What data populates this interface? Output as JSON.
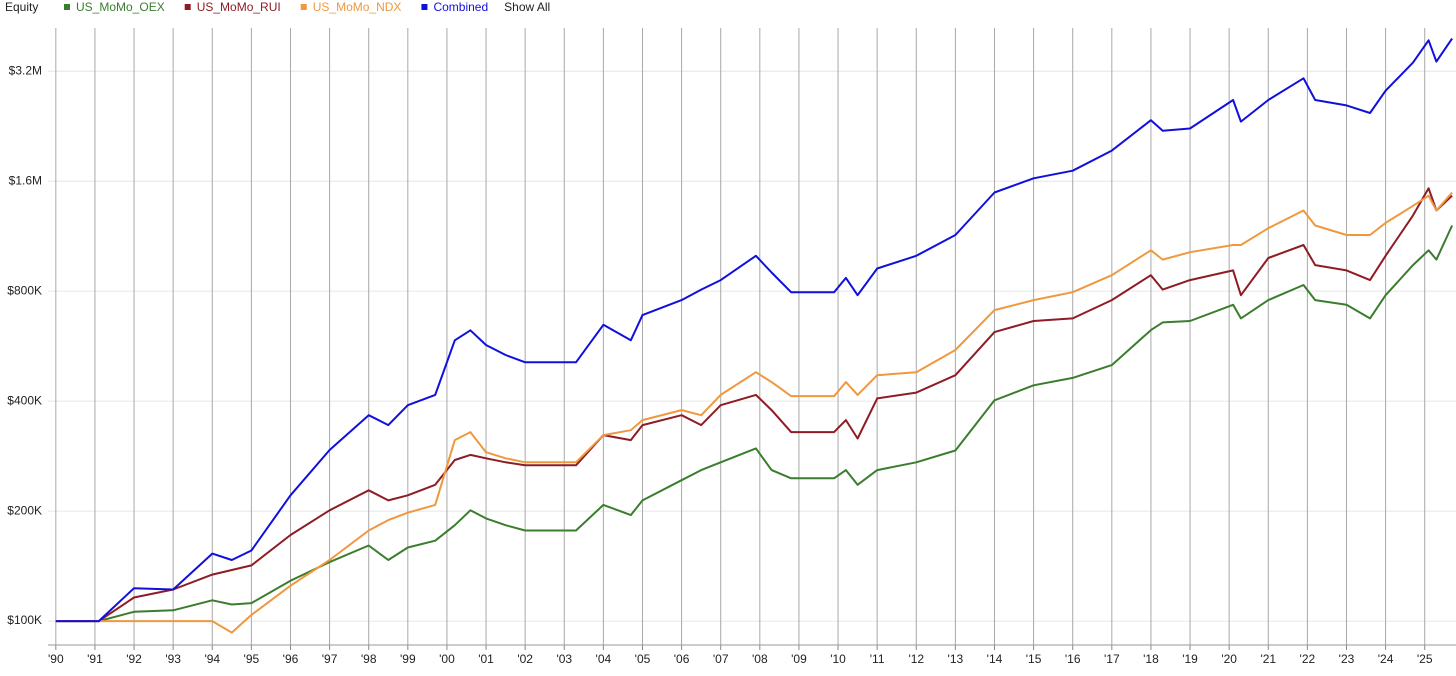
{
  "chart_data": {
    "type": "line",
    "title": "Equity",
    "show_all_label": "Show All",
    "log_scale_y": true,
    "grid": true,
    "legend": "top-left",
    "x": [
      1990,
      1991.1,
      1992,
      1993,
      1994,
      1994.5,
      1995,
      1996,
      1997,
      1998,
      1998.5,
      1999,
      1999.7,
      2000.2,
      2000.6,
      2001,
      2001.5,
      2002,
      2003.3,
      2004,
      2004.7,
      2005,
      2006,
      2006.5,
      2007,
      2007.9,
      2008.3,
      2008.8,
      2009.9,
      2010.2,
      2010.5,
      2011,
      2012,
      2013,
      2014,
      2015,
      2016,
      2017,
      2018,
      2018.3,
      2019,
      2020.1,
      2020.3,
      2021,
      2021.9,
      2022.2,
      2023,
      2023.6,
      2024,
      2024.7,
      2025.1,
      2025.3,
      2025.7
    ],
    "series": [
      {
        "name": "US_MoMo_OEX",
        "color": "#3b7d2e",
        "values": [
          100000,
          100000,
          106000,
          107000,
          114000,
          111000,
          112000,
          129000,
          145000,
          161000,
          147000,
          159000,
          166000,
          183000,
          201000,
          191000,
          183000,
          177000,
          177000,
          208000,
          195000,
          214000,
          243000,
          259000,
          272000,
          297000,
          259000,
          246000,
          246000,
          259000,
          236000,
          259000,
          272000,
          293000,
          402000,
          442000,
          463000,
          502000,
          626000,
          657000,
          663000,
          734000,
          674000,
          756000,
          832000,
          756000,
          734000,
          674000,
          780000,
          943000,
          1035000,
          976000,
          1210000
        ]
      },
      {
        "name": "US_MoMo_RUI",
        "color": "#8e1c24",
        "values": [
          100000,
          100000,
          116000,
          122000,
          134000,
          138000,
          142000,
          172000,
          201000,
          228000,
          214000,
          221000,
          236000,
          276000,
          285000,
          279000,
          272000,
          267000,
          267000,
          323000,
          313000,
          344000,
          366000,
          344000,
          390000,
          416000,
          378000,
          329000,
          329000,
          355000,
          316000,
          407000,
          422000,
          471000,
          618000,
          663000,
          674000,
          756000,
          885000,
          808000,
          858000,
          912000,
          780000,
          986000,
          1070000,
          943000,
          912000,
          858000,
          1000000,
          1290000,
          1530000,
          1330000,
          1460000
        ]
      },
      {
        "name": "US_MoMo_NDX",
        "color": "#f0983e",
        "values": [
          100000,
          100000,
          100000,
          100000,
          100000,
          93000,
          104000,
          125000,
          147000,
          177000,
          189000,
          198000,
          208000,
          313000,
          329000,
          290000,
          279000,
          272000,
          272000,
          323000,
          333000,
          355000,
          378000,
          366000,
          416000,
          480000,
          451000,
          413000,
          413000,
          451000,
          416000,
          471000,
          480000,
          552000,
          710000,
          756000,
          795000,
          885000,
          1035000,
          976000,
          1023000,
          1070000,
          1070000,
          1190000,
          1330000,
          1210000,
          1140000,
          1140000,
          1230000,
          1370000,
          1460000,
          1330000,
          1490000
        ]
      },
      {
        "name": "Combined",
        "color": "#1010dd",
        "values": [
          100000,
          100000,
          123000,
          122000,
          153000,
          147000,
          156000,
          221000,
          294000,
          366000,
          344000,
          390000,
          416000,
          587000,
          625000,
          570000,
          535000,
          511000,
          511000,
          647000,
          587000,
          688000,
          756000,
          808000,
          858000,
          1000000,
          900000,
          795000,
          795000,
          870000,
          780000,
          923000,
          1000000,
          1140000,
          1490000,
          1630000,
          1710000,
          1940000,
          2350000,
          2200000,
          2230000,
          2670000,
          2330000,
          2670000,
          3060000,
          2670000,
          2580000,
          2460000,
          2830000,
          3380000,
          3890000,
          3400000,
          3930000
        ]
      }
    ],
    "xlim": [
      1989.8,
      2025.8
    ],
    "xticks": [
      {
        "value": 1990,
        "label": "'90"
      },
      {
        "value": 1991,
        "label": "'91"
      },
      {
        "value": 1992,
        "label": "'92"
      },
      {
        "value": 1993,
        "label": "'93"
      },
      {
        "value": 1994,
        "label": "'94"
      },
      {
        "value": 1995,
        "label": "'95"
      },
      {
        "value": 1996,
        "label": "'96"
      },
      {
        "value": 1997,
        "label": "'97"
      },
      {
        "value": 1998,
        "label": "'98"
      },
      {
        "value": 1999,
        "label": "'99"
      },
      {
        "value": 2000,
        "label": "'00"
      },
      {
        "value": 2001,
        "label": "'01"
      },
      {
        "value": 2002,
        "label": "'02"
      },
      {
        "value": 2003,
        "label": "'03"
      },
      {
        "value": 2004,
        "label": "'04"
      },
      {
        "value": 2005,
        "label": "'05"
      },
      {
        "value": 2006,
        "label": "'06"
      },
      {
        "value": 2007,
        "label": "'07"
      },
      {
        "value": 2008,
        "label": "'08"
      },
      {
        "value": 2009,
        "label": "'09"
      },
      {
        "value": 2010,
        "label": "'10"
      },
      {
        "value": 2011,
        "label": "'11"
      },
      {
        "value": 2012,
        "label": "'12"
      },
      {
        "value": 2013,
        "label": "'13"
      },
      {
        "value": 2014,
        "label": "'14"
      },
      {
        "value": 2015,
        "label": "'15"
      },
      {
        "value": 2016,
        "label": "'16"
      },
      {
        "value": 2017,
        "label": "'17"
      },
      {
        "value": 2018,
        "label": "'18"
      },
      {
        "value": 2019,
        "label": "'19"
      },
      {
        "value": 2020,
        "label": "'20"
      },
      {
        "value": 2021,
        "label": "'21"
      },
      {
        "value": 2022,
        "label": "'22"
      },
      {
        "value": 2023,
        "label": "'23"
      },
      {
        "value": 2024,
        "label": "'24"
      },
      {
        "value": 2025,
        "label": "'25"
      }
    ],
    "ylim": [
      86000,
      4150000
    ],
    "yticks": [
      {
        "value": 100000,
        "label": "$100K"
      },
      {
        "value": 200000,
        "label": "$200K"
      },
      {
        "value": 400000,
        "label": "$400K"
      },
      {
        "value": 800000,
        "label": "$800K"
      },
      {
        "value": 1600000,
        "label": "$1.6M"
      },
      {
        "value": 3200000,
        "label": "$3.2M"
      }
    ]
  }
}
